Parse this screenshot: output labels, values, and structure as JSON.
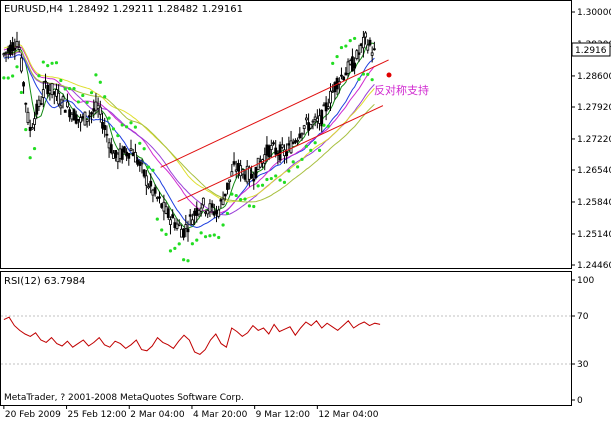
{
  "chart_data": [
    {
      "type": "candlestick",
      "title": "EURUSD,H4",
      "ohlc_header": "1.28492 1.29211 1.28482 1.29161",
      "last_price_label": "1.2916",
      "annotation": "反对称支持",
      "price_axis_ticks": [
        "1.30000",
        "1.29300",
        "1.28600",
        "1.27920",
        "1.27220",
        "1.26540",
        "1.25840",
        "1.25140",
        "1.24460"
      ],
      "price_axis_values": [
        1.3,
        1.293,
        1.286,
        1.2792,
        1.2722,
        1.2654,
        1.2584,
        1.2514,
        1.2446
      ],
      "ylim": [
        1.2446,
        1.3
      ],
      "time_axis_labels": [
        "20 Feb 2009",
        "25 Feb 12:00",
        "2 Mar 04:00",
        "4 Mar 20:00",
        "9 Mar 12:00",
        "12 Mar 04:00"
      ],
      "channel_lower": {
        "x": [
          0.31,
          0.67
        ],
        "y": [
          1.2585,
          1.2795
        ]
      },
      "channel_upper": {
        "x": [
          0.28,
          0.68
        ],
        "y": [
          1.266,
          1.2895
        ]
      },
      "colors": {
        "bull_body": "#ffffff",
        "bear_body": "#000000",
        "channel": "#e01010",
        "sar": "#22dd22",
        "ma_blue": "#1f3fdf",
        "ma_green": "#118811",
        "ma_magenta": "#d02ad0",
        "ma_purple": "#9a3fd8",
        "ma_yellow": "#dfdf30",
        "ma_olive": "#a8c040"
      }
    },
    {
      "type": "line",
      "title": "RSI(12) 63.7984",
      "y_ticks": [
        "100",
        "70",
        "30",
        "0"
      ],
      "y_tick_values": [
        100,
        70,
        30,
        0
      ],
      "ylim": [
        0,
        100
      ],
      "series": [
        {
          "values": [
            67,
            69,
            62,
            58,
            55,
            53,
            56,
            50,
            48,
            52,
            47,
            45,
            49,
            44,
            47,
            50,
            45,
            48,
            52,
            46,
            44,
            49,
            47,
            43,
            46,
            50,
            42,
            41,
            45,
            52,
            48,
            46,
            43,
            49,
            54,
            50,
            40,
            38,
            42,
            50,
            55,
            47,
            44,
            60,
            57,
            53,
            56,
            62,
            58,
            60,
            55,
            63,
            57,
            59,
            61,
            54,
            60,
            65,
            62,
            66,
            60,
            64,
            61,
            58,
            62,
            66,
            60,
            63,
            65,
            62,
            64,
            63
          ],
          "color": "#c00000"
        }
      ]
    }
  ],
  "copyright": "MetaTrader, ? 2001-2008 MetaQuotes Software Corp."
}
